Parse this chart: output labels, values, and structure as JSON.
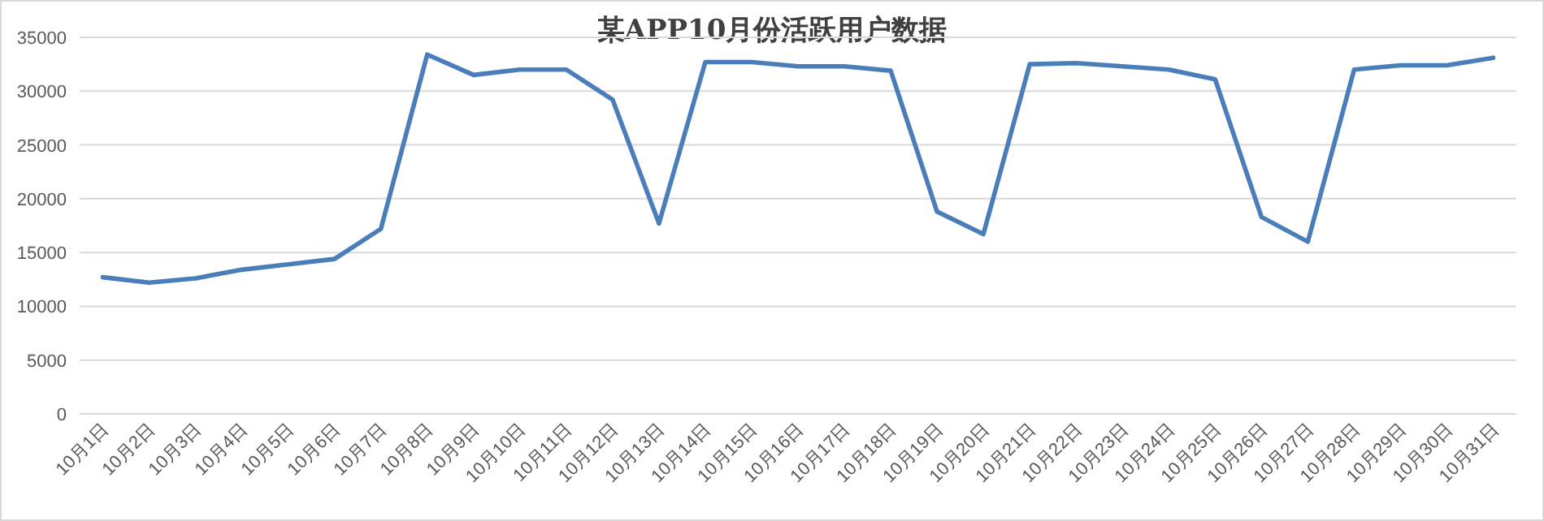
{
  "chart_data": {
    "type": "line",
    "title": "某APP10月份活跃用户数据",
    "categories": [
      "10月1日",
      "10月2日",
      "10月3日",
      "10月4日",
      "10月5日",
      "10月6日",
      "10月7日",
      "10月8日",
      "10月9日",
      "10月10日",
      "10月11日",
      "10月12日",
      "10月13日",
      "10月14日",
      "10月15日",
      "10月16日",
      "10月17日",
      "10月18日",
      "10月19日",
      "10月20日",
      "10月21日",
      "10月22日",
      "10月23日",
      "10月24日",
      "10月25日",
      "10月26日",
      "10月27日",
      "10月28日",
      "10月29日",
      "10月30日",
      "10月31日"
    ],
    "series": [
      {
        "color": "#4a7ebb",
        "values": [
          12700,
          12200,
          12600,
          13400,
          13900,
          14400,
          17200,
          33400,
          31500,
          32000,
          32000,
          29200,
          17700,
          32700,
          32700,
          32300,
          32300,
          31900,
          18800,
          16700,
          32500,
          32600,
          32300,
          32000,
          31100,
          18300,
          16000,
          32000,
          32400,
          32400,
          33100
        ]
      }
    ],
    "ylim": [
      0,
      35000
    ],
    "yticks": [
      0,
      5000,
      10000,
      15000,
      20000,
      25000,
      30000,
      35000
    ],
    "grid": "y",
    "marker": "none",
    "line_style": "solid"
  }
}
